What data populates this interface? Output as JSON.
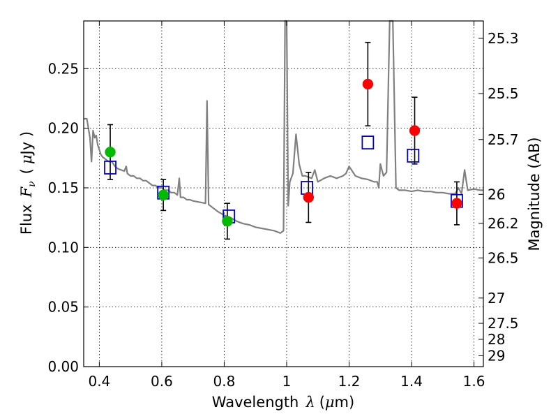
{
  "chart_data": {
    "type": "scatter",
    "xlabel_text": "Wavelength",
    "xlabel_symbol": "λ",
    "xlabel_unit_open": "(",
    "xlabel_unit_mu": "μ",
    "xlabel_unit_rest": "m)",
    "ylabel_text": "Flux",
    "ylabel_symbol_base": "F",
    "ylabel_symbol_sub": "ν",
    "ylabel_unit_open": "(",
    "ylabel_unit_mu": "μ",
    "ylabel_unit_rest": "Jy )",
    "ylabel_right": "Magnitude (AB)",
    "xlim": [
      0.35,
      1.63
    ],
    "ylim": [
      0.0,
      0.29
    ],
    "grid": true,
    "x_ticks": [
      0.4,
      0.6,
      0.8,
      1.0,
      1.2,
      1.4,
      1.6
    ],
    "x_tick_labels": [
      "0.4",
      "0.6",
      "0.8",
      "1",
      "1.2",
      "1.4",
      "1.6"
    ],
    "y_ticks": [
      0.0,
      0.05,
      0.1,
      0.15,
      0.2,
      0.25
    ],
    "y_tick_labels": [
      "0.00",
      "0.05",
      "0.10",
      "0.15",
      "0.20",
      "0.25"
    ],
    "right_axis_mag_ticks": [
      25.3,
      25.5,
      25.7,
      26,
      26.2,
      26.5,
      27,
      27.5,
      28,
      29
    ],
    "right_axis_tick_labels": [
      "25.3",
      "25.5",
      "25.7",
      "26",
      "26.2",
      "26.5",
      "27",
      "27.5",
      "28",
      "29"
    ],
    "series": [
      {
        "kind": "model_spectrum",
        "color": "#808080",
        "x": [
          0.35,
          0.36,
          0.37,
          0.375,
          0.38,
          0.385,
          0.39,
          0.395,
          0.4,
          0.405,
          0.41,
          0.42,
          0.43,
          0.44,
          0.45,
          0.46,
          0.47,
          0.48,
          0.486,
          0.49,
          0.5,
          0.51,
          0.52,
          0.53,
          0.54,
          0.55,
          0.56,
          0.57,
          0.58,
          0.59,
          0.6,
          0.61,
          0.62,
          0.63,
          0.64,
          0.65,
          0.656,
          0.66,
          0.67,
          0.68,
          0.69,
          0.7,
          0.72,
          0.74,
          0.745,
          0.75,
          0.76,
          0.78,
          0.8,
          0.82,
          0.84,
          0.86,
          0.88,
          0.9,
          0.92,
          0.94,
          0.96,
          0.98,
          0.99,
          0.995,
          1.0,
          1.005,
          1.01,
          1.02,
          1.03,
          1.04,
          1.05,
          1.06,
          1.08,
          1.09,
          1.1,
          1.12,
          1.14,
          1.16,
          1.18,
          1.19,
          1.2,
          1.22,
          1.24,
          1.26,
          1.28,
          1.29,
          1.295,
          1.3,
          1.31,
          1.32,
          1.33,
          1.34,
          1.35,
          1.36,
          1.37,
          1.38,
          1.4,
          1.42,
          1.44,
          1.46,
          1.48,
          1.5,
          1.52,
          1.54,
          1.55,
          1.56,
          1.57,
          1.58,
          1.6,
          1.62,
          1.63
        ],
        "y": [
          0.208,
          0.208,
          0.192,
          0.172,
          0.198,
          0.192,
          0.194,
          0.186,
          0.182,
          0.178,
          0.176,
          0.174,
          0.172,
          0.172,
          0.168,
          0.166,
          0.165,
          0.164,
          0.168,
          0.162,
          0.16,
          0.16,
          0.158,
          0.158,
          0.156,
          0.156,
          0.154,
          0.152,
          0.152,
          0.15,
          0.15,
          0.148,
          0.148,
          0.146,
          0.146,
          0.144,
          0.158,
          0.142,
          0.142,
          0.14,
          0.14,
          0.139,
          0.138,
          0.137,
          0.223,
          0.136,
          0.134,
          0.13,
          0.127,
          0.125,
          0.122,
          0.12,
          0.119,
          0.117,
          0.116,
          0.115,
          0.114,
          0.112,
          0.114,
          0.29,
          0.29,
          0.135,
          0.155,
          0.162,
          0.195,
          0.17,
          0.16,
          0.16,
          0.158,
          0.165,
          0.155,
          0.158,
          0.16,
          0.158,
          0.16,
          0.162,
          0.168,
          0.16,
          0.158,
          0.157,
          0.155,
          0.155,
          0.15,
          0.17,
          0.16,
          0.163,
          0.29,
          0.29,
          0.15,
          0.148,
          0.148,
          0.148,
          0.147,
          0.148,
          0.147,
          0.147,
          0.146,
          0.146,
          0.145,
          0.145,
          0.15,
          0.145,
          0.165,
          0.148,
          0.149,
          0.148,
          0.148
        ]
      },
      {
        "kind": "model_photometry",
        "marker": "open-square",
        "color": "#0000cc",
        "x": [
          0.435,
          0.605,
          0.815,
          1.065,
          1.26,
          1.405,
          1.545
        ],
        "y": [
          0.167,
          0.146,
          0.126,
          0.15,
          0.188,
          0.177,
          0.139
        ]
      },
      {
        "kind": "observed_optical",
        "marker": "filled-circle",
        "color": "#00bb00",
        "x": [
          0.435,
          0.605,
          0.81
        ],
        "y": [
          0.18,
          0.144,
          0.122
        ],
        "yerr": [
          0.023,
          0.013,
          0.015
        ]
      },
      {
        "kind": "observed_nir",
        "marker": "filled-circle",
        "color": "#ff0000",
        "x": [
          1.07,
          1.26,
          1.41,
          1.545
        ],
        "y": [
          0.142,
          0.237,
          0.198,
          0.137
        ],
        "yerr": [
          0.021,
          0.035,
          0.028,
          0.018
        ]
      }
    ]
  }
}
